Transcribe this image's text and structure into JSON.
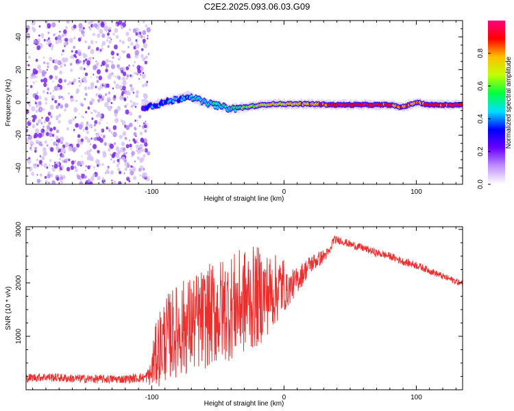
{
  "figure_title": "C2E2.2025.093.06.03.G09",
  "colors": {
    "snr_line": "#ee2e2e",
    "speckle_light": "#d7c4f5",
    "speckle_mid": "#b48ff0",
    "speckle_dark": "#7a28e8",
    "axis": "#000000"
  },
  "chart_data": [
    {
      "id": "spectrogram",
      "type": "heatmap",
      "title": "C2E2.2025.093.06.03.G09",
      "xlabel": "Height of straight line (km)",
      "ylabel": "Frequency (Hz)",
      "xlim": [
        -195,
        135
      ],
      "ylim": [
        -50,
        50
      ],
      "xticks": [
        -100,
        0,
        100
      ],
      "xtick_labels": [
        "-100",
        "0",
        "100"
      ],
      "yticks": [
        -40,
        -20,
        0,
        20,
        40
      ],
      "ytick_labels": [
        "-40",
        "-20",
        "0",
        "20",
        "40"
      ],
      "noise_region_km": [
        -195,
        -102
      ],
      "carrier_track": {
        "x": [
          -107,
          -100,
          -90,
          -80,
          -72,
          -60,
          -50,
          -40,
          -30,
          -20,
          -10,
          0,
          10,
          20,
          40,
          60,
          80,
          88,
          95,
          100,
          110,
          120,
          135
        ],
        "y": [
          -3,
          -2,
          0,
          2,
          4,
          0,
          -2,
          -4,
          -3,
          -2,
          -1,
          -1,
          -1,
          -1,
          -1.5,
          -1.5,
          -1.5,
          -3,
          -1.5,
          0,
          -1.5,
          -1.5,
          -1.5
        ],
        "amplitude": [
          0.25,
          0.35,
          0.4,
          0.4,
          0.45,
          0.45,
          0.5,
          0.45,
          0.6,
          0.65,
          0.75,
          0.7,
          0.75,
          0.8,
          0.9,
          0.9,
          0.9,
          0.8,
          0.85,
          0.8,
          0.9,
          0.9,
          0.9
        ]
      },
      "colorbar": {
        "label": "Normalized spectral amplitude",
        "range": [
          0.0,
          1.0
        ],
        "ticks": [
          0.0,
          0.2,
          0.4,
          0.6,
          0.8
        ],
        "tick_labels": [
          "0.0",
          "0.2",
          "0.4",
          "0.6",
          "0.8"
        ],
        "colors": [
          "#ffffff",
          "#c090ff",
          "#6a00ff",
          "#0000ff",
          "#00e0ff",
          "#00ff40",
          "#c0ff00",
          "#ffc000",
          "#ff0000",
          "#ff0080"
        ]
      }
    },
    {
      "id": "snr",
      "type": "line",
      "xlabel": "Height of straight line (km)",
      "ylabel": "SNR (10 * v/v)",
      "xlim": [
        -195,
        135
      ],
      "ylim": [
        0,
        3050
      ],
      "xticks": [
        -100,
        0,
        100
      ],
      "xtick_labels": [
        "-100",
        "0",
        "100"
      ],
      "yticks": [
        1000,
        2000,
        3000
      ],
      "ytick_labels": [
        "1000",
        "2000",
        "3000"
      ],
      "series": [
        {
          "name": "SNR",
          "x": [
            -195,
            -180,
            -160,
            -140,
            -120,
            -105,
            -100,
            -95,
            -90,
            -85,
            -80,
            -75,
            -70,
            -60,
            -50,
            -40,
            -30,
            -20,
            -10,
            0,
            10,
            20,
            30,
            35,
            37,
            42,
            50,
            60,
            70,
            80,
            90,
            100,
            110,
            120,
            130,
            135
          ],
          "y": [
            220,
            240,
            210,
            200,
            200,
            230,
            300,
            550,
            700,
            800,
            850,
            900,
            950,
            1050,
            1150,
            1250,
            1350,
            1450,
            1600,
            1800,
            2050,
            2350,
            2500,
            2600,
            2800,
            2800,
            2720,
            2650,
            2560,
            2500,
            2400,
            2330,
            2230,
            2120,
            2030,
            1980
          ],
          "jitter": [
            160,
            160,
            160,
            160,
            160,
            170,
            500,
            900,
            1000,
            1050,
            1100,
            1150,
            1150,
            1200,
            1250,
            1250,
            1250,
            1200,
            900,
            700,
            500,
            350,
            250,
            150,
            150,
            150,
            140,
            140,
            140,
            140,
            140,
            140,
            130,
            120,
            120,
            120
          ]
        }
      ]
    }
  ]
}
